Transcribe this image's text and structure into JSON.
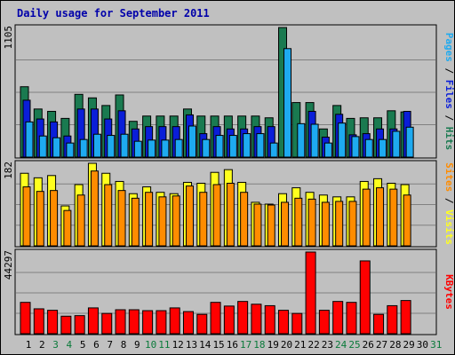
{
  "chart_data": {
    "type": "bar",
    "title": "Daily usage for September 2011",
    "categories": [
      "1",
      "2",
      "3",
      "4",
      "5",
      "6",
      "7",
      "8",
      "9",
      "10",
      "11",
      "12",
      "13",
      "14",
      "15",
      "16",
      "17",
      "18",
      "19",
      "20",
      "21",
      "22",
      "23",
      "24",
      "25",
      "26",
      "27",
      "28",
      "29",
      "30",
      "31"
    ],
    "weekend_days": [
      3,
      4,
      10,
      11,
      17,
      18,
      24,
      25,
      31
    ],
    "colors": {
      "background": "#c0c0c0",
      "panel": "#c0c0c0",
      "title": "#0000aa",
      "hits": "#1a7a50",
      "files": "#0a1ed8",
      "pages": "#1eaaf0",
      "visits": "#ffff1e",
      "sites": "#ff8c00",
      "kbytes": "#ff0000",
      "weekend_label": "#0a7a3a",
      "weekday_label": "#000000"
    },
    "panels": [
      {
        "name": "hits-files-pages",
        "ymax_label": "1105",
        "ymax": 1105,
        "legend": [
          "Hits",
          "Files",
          "Pages"
        ],
        "series": [
          {
            "name": "Hits",
            "values": [
              600,
              410,
              390,
              330,
              535,
              505,
              440,
              530,
              305,
              350,
              350,
              350,
              410,
              350,
              350,
              350,
              350,
              350,
              335,
              1105,
              465,
              465,
              240,
              440,
              330,
              335,
              335,
              395,
              385,
              0,
              0
            ]
          },
          {
            "name": "Files",
            "values": [
              485,
              325,
              300,
              180,
              410,
              410,
              325,
              395,
              240,
              260,
              260,
              260,
              360,
              200,
              260,
              240,
              240,
              260,
              260,
              0,
              0,
              390,
              170,
              365,
              190,
              200,
              240,
              240,
              390,
              0,
              0
            ]
          },
          {
            "name": "Pages",
            "values": [
              300,
              180,
              165,
              120,
              150,
              195,
              185,
              195,
              135,
              145,
              145,
              150,
              265,
              150,
              185,
              185,
              200,
              200,
              120,
              925,
              285,
              280,
              120,
              290,
              175,
              150,
              150,
              220,
              255,
              0,
              0
            ]
          }
        ]
      },
      {
        "name": "visits-sites",
        "ymax_label": "182",
        "ymax": 182,
        "legend": [
          "Visits",
          "Sites"
        ],
        "series": [
          {
            "name": "Visits",
            "values": [
              160,
              150,
              155,
              88,
              135,
              182,
              160,
              142,
              115,
              130,
              118,
              115,
              140,
              138,
              162,
              168,
              140,
              96,
              92,
              115,
              128,
              118,
              112,
              108,
              108,
              142,
              148,
              138,
              135,
              0,
              0
            ]
          },
          {
            "name": "Sites",
            "values": [
              130,
              120,
              122,
              78,
              112,
              165,
              135,
              122,
              105,
              118,
              108,
              110,
              132,
              118,
              135,
              138,
              118,
              92,
              90,
              96,
              105,
              103,
              96,
              98,
              98,
              125,
              128,
              125,
              112,
              0,
              0
            ]
          }
        ]
      },
      {
        "name": "kbytes",
        "ymax_label": "44297",
        "ymax": 44297,
        "legend": [
          "KBytes"
        ],
        "series": [
          {
            "name": "KBytes",
            "values": [
              17000,
              13500,
              12700,
              9500,
              9800,
              14000,
              11000,
              13000,
              13000,
              12500,
              12500,
              14000,
              12000,
              10500,
              17000,
              15000,
              17500,
              16000,
              15200,
              12700,
              11000,
              44297,
              12700,
              17500,
              17000,
              39500,
              10500,
              15200,
              18000,
              0,
              0
            ]
          }
        ]
      }
    ]
  }
}
